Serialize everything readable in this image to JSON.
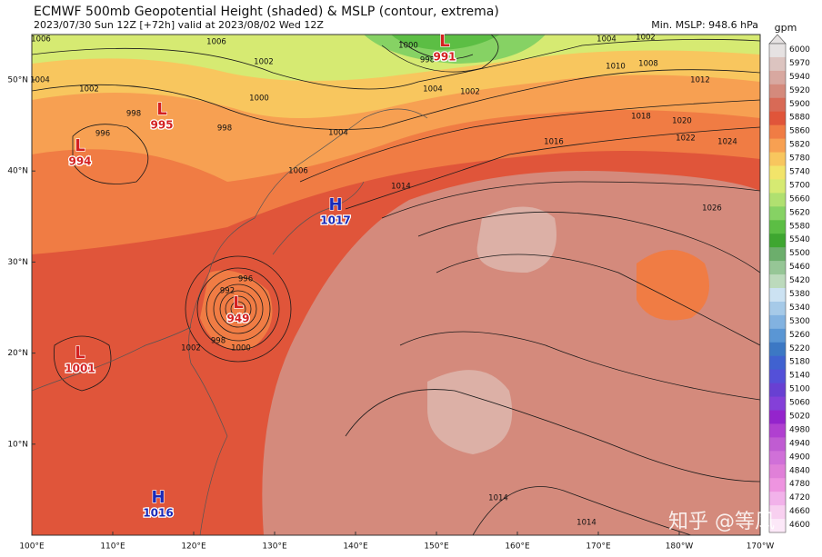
{
  "header": {
    "title": "ECMWF 500mb Geopotential Height (shaded) & MSLP (contour, extrema)",
    "subtitle": "2023/07/30 Sun 12Z [+72h] valid at 2023/08/02 Wed 12Z",
    "min_mslp": "Min. MSLP: 948.6 hPa"
  },
  "lat_labels": [
    "50°N",
    "40°N",
    "30°N",
    "20°N",
    "10°N"
  ],
  "lon_labels": [
    "100°E",
    "110°E",
    "120°E",
    "130°E",
    "140°E",
    "150°E",
    "160°E",
    "170°E",
    "180°W",
    "170°W"
  ],
  "centers": [
    {
      "type": "L",
      "value": 991
    },
    {
      "type": "L",
      "value": 995
    },
    {
      "type": "L",
      "value": 994
    },
    {
      "type": "H",
      "value": 1017
    },
    {
      "type": "L",
      "value": 949
    },
    {
      "type": "L",
      "value": 1001
    },
    {
      "type": "H",
      "value": 1016
    }
  ],
  "contour_labels": [
    1006,
    1006,
    1004,
    1002,
    1002,
    1000,
    998,
    996,
    998,
    1004,
    1006,
    1014,
    1000,
    998,
    1004,
    1002,
    1004,
    1002,
    1010,
    1008,
    1012,
    1018,
    1020,
    1016,
    1022,
    1024,
    1026,
    996,
    992,
    998,
    1002,
    1000,
    1014,
    1014
  ],
  "colorbar": {
    "label": "gpm",
    "ticks": [
      6000,
      5970,
      5940,
      5920,
      5900,
      5880,
      5860,
      5820,
      5780,
      5740,
      5700,
      5660,
      5620,
      5580,
      5540,
      5500,
      5460,
      5420,
      5380,
      5340,
      5300,
      5260,
      5220,
      5180,
      5140,
      5100,
      5060,
      5020,
      4980,
      4940,
      4900,
      4840,
      4780,
      4720,
      4660,
      4600
    ],
    "colors": [
      "#e6e2e2",
      "#dcc4c0",
      "#d8a8a0",
      "#d48a7c",
      "#d86a56",
      "#e0553a",
      "#f07c44",
      "#f7a052",
      "#f8c65e",
      "#f2e46a",
      "#d6ea72",
      "#b0e070",
      "#86d264",
      "#5cbe44",
      "#3ea630",
      "#6cae6c",
      "#96c696",
      "#bcdabc",
      "#cce2f2",
      "#a6cae8",
      "#82b2e0",
      "#5a96d4",
      "#3c78c4",
      "#4062d0",
      "#5450d8",
      "#6840d2",
      "#8440d8",
      "#9424cc",
      "#b040d0",
      "#c05cd2",
      "#d070d8",
      "#e080d8",
      "#ee94e0",
      "#f2b2ea",
      "#f8d0f0",
      "#fce8f8"
    ]
  },
  "watermark": "知乎 @等风"
}
